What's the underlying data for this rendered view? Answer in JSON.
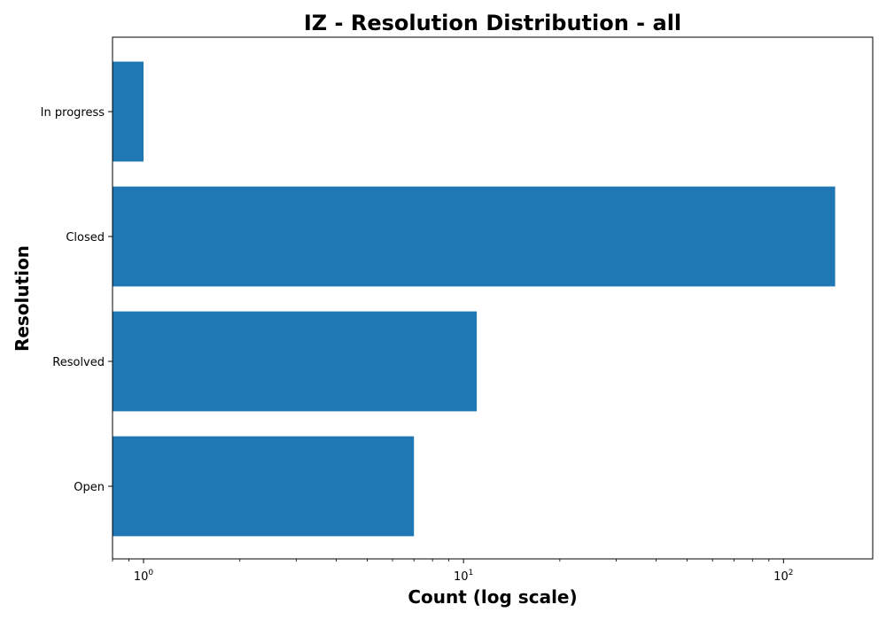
{
  "chart_data": {
    "type": "bar",
    "orientation": "horizontal",
    "title": "IZ - Resolution Distribution - all",
    "xlabel": "Count (log scale)",
    "ylabel": "Resolution",
    "x_scale": "log",
    "xlim": [
      0.8,
      190
    ],
    "categories": [
      "Open",
      "Resolved",
      "Closed",
      "In progress"
    ],
    "values": [
      7,
      11,
      145,
      1
    ],
    "bar_color": "#1f77b4",
    "x_ticks": [
      {
        "value": 1,
        "base": "10",
        "exp": "0"
      },
      {
        "value": 10,
        "base": "10",
        "exp": "1"
      },
      {
        "value": 100,
        "base": "10",
        "exp": "2"
      }
    ],
    "grid": false
  }
}
